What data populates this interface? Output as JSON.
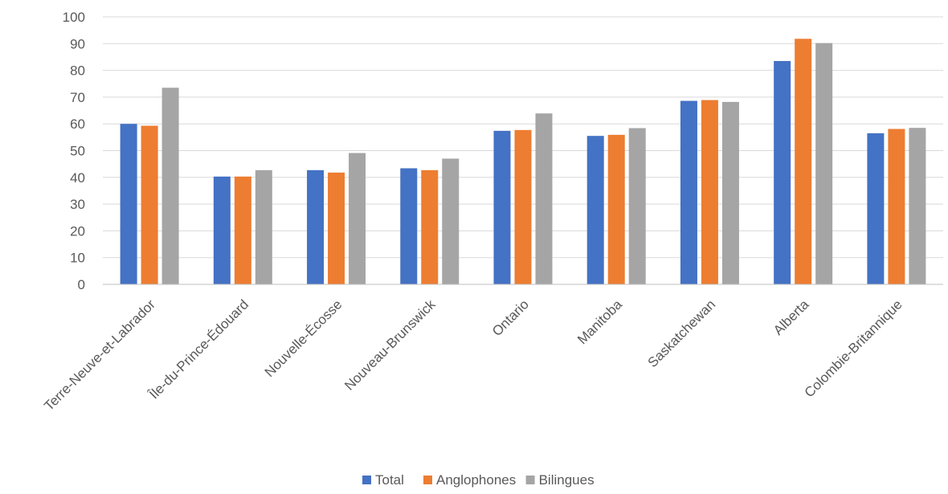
{
  "chart_data": {
    "type": "bar",
    "title": "",
    "xlabel": "",
    "ylabel": "",
    "ylim": [
      0,
      100
    ],
    "yticks": [
      0,
      10,
      20,
      30,
      40,
      50,
      60,
      70,
      80,
      90,
      100
    ],
    "grid": true,
    "legend_position": "bottom",
    "categories": [
      "Terre-Neuve-et-Labrador",
      "Île-du-Prince-Édouard",
      "Nouvelle-Écosse",
      "Nouveau-Brunswick",
      "Ontario",
      "Manitoba",
      "Saskatchewan",
      "Alberta",
      "Colombie-Britannique"
    ],
    "series": [
      {
        "name": "Total",
        "color": "#4472c4",
        "values": [
          60,
          40.3,
          42.7,
          43.4,
          57.4,
          55.5,
          68.6,
          83.5,
          56.5
        ]
      },
      {
        "name": "Anglophones",
        "color": "#ed7d31",
        "values": [
          59.3,
          40.3,
          41.8,
          42.7,
          57.7,
          55.9,
          68.9,
          91.8,
          58.1
        ]
      },
      {
        "name": "Bilingues",
        "color": "#a5a5a5",
        "values": [
          73.5,
          42.7,
          49.1,
          47,
          63.9,
          58.4,
          68.2,
          90.2,
          58.5
        ]
      }
    ]
  }
}
